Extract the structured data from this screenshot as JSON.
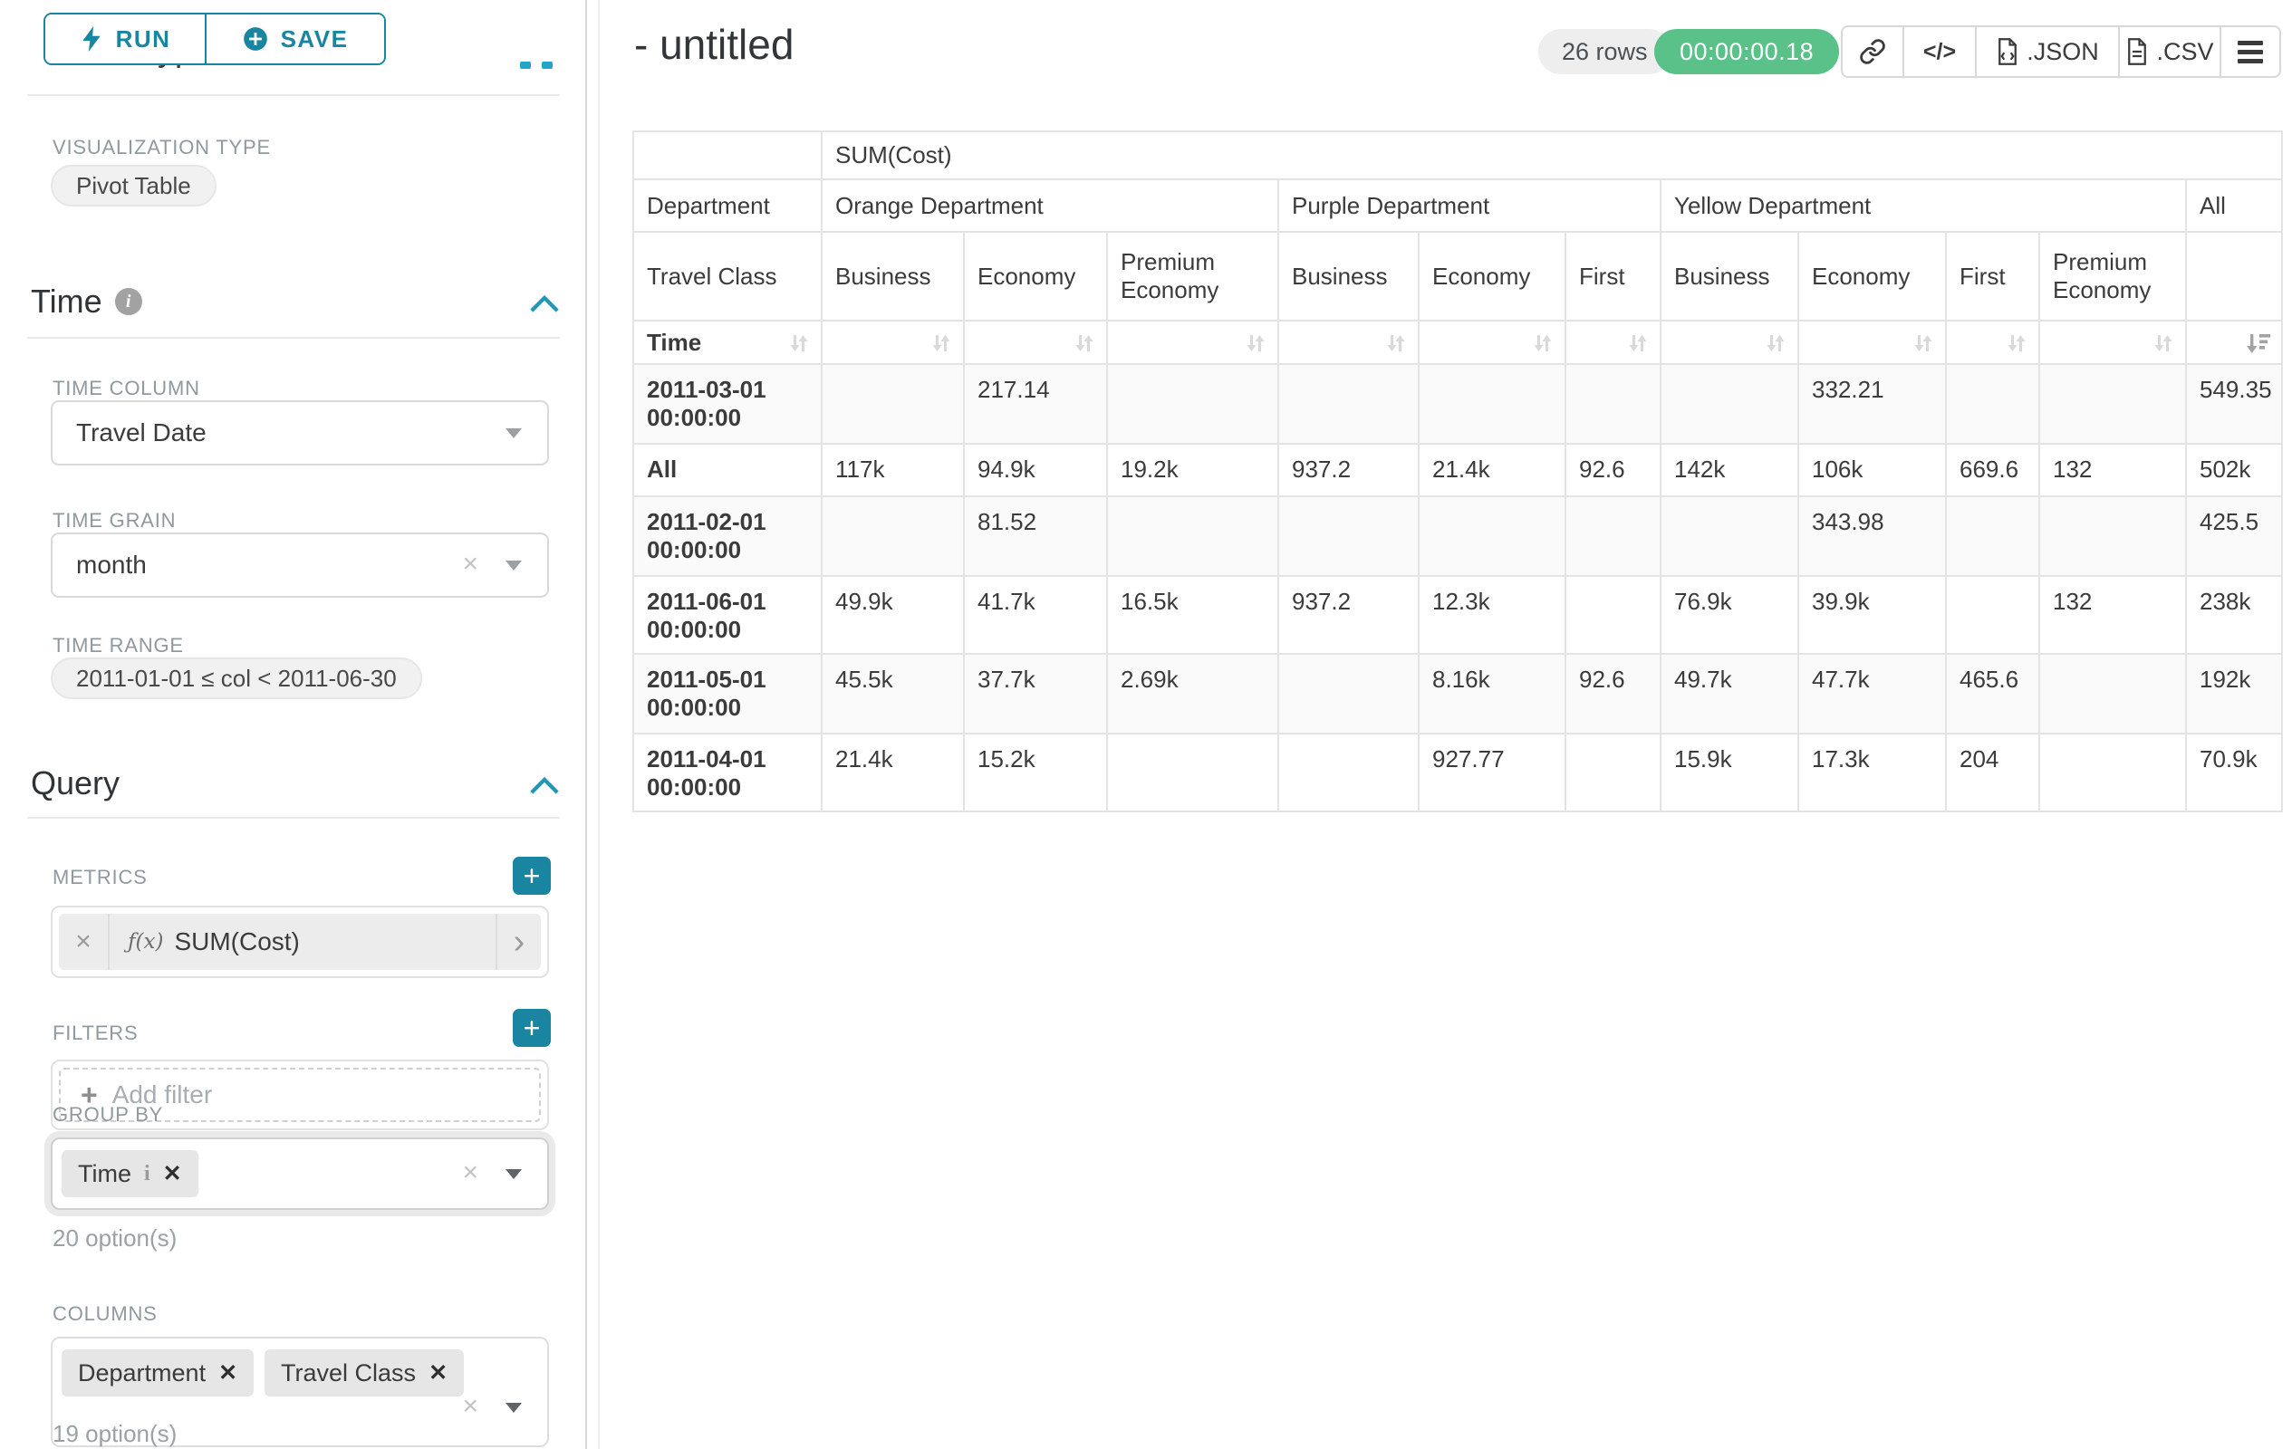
{
  "colors": {
    "teal": "#1985a0",
    "green": "#5ac189"
  },
  "toolbar": {
    "run": "RUN",
    "save": "SAVE"
  },
  "sidebar": {
    "scrolled_heading": "Chart Type",
    "viz": {
      "label": "VISUALIZATION TYPE",
      "value": "Pivot Table"
    },
    "time": {
      "title": "Time",
      "column_label": "TIME COLUMN",
      "column_value": "Travel Date",
      "grain_label": "TIME GRAIN",
      "grain_value": "month",
      "range_label": "TIME RANGE",
      "range_value": "2011-01-01 ≤ col < 2011-06-30"
    },
    "query": {
      "title": "Query",
      "metrics_label": "METRICS",
      "metric": {
        "fx": "ƒ(x)",
        "value": "SUM(Cost)"
      },
      "filters_label": "FILTERS",
      "add_filter_label": "Add filter",
      "groupby_label": "GROUP BY",
      "groupby_tags": [
        "Time"
      ],
      "groupby_options": "20 option(s)",
      "columns_label": "COLUMNS",
      "columns_tags": [
        "Department",
        "Travel Class"
      ],
      "columns_options": "19 option(s)"
    }
  },
  "header": {
    "title": "- untitled",
    "rows_badge": "26 rows",
    "timer": "00:00:00.18",
    "code_label": "</>",
    "export_json": ".JSON",
    "export_csv": ".CSV"
  },
  "pivot": {
    "metric_header": "SUM(Cost)",
    "corner": {
      "col1": "Department",
      "col2": "Travel Class",
      "row": "Time"
    },
    "groups": [
      {
        "label": "Orange Department",
        "span": 3
      },
      {
        "label": "Purple Department",
        "span": 3
      },
      {
        "label": "Yellow Department",
        "span": 4
      },
      {
        "label": "All",
        "span": 1
      }
    ],
    "subcolumns": [
      "Business",
      "Economy",
      "Premium Economy",
      "Business",
      "Economy",
      "First",
      "Business",
      "Economy",
      "First",
      "Premium Economy",
      ""
    ],
    "rows": [
      {
        "label": "2011-03-01 00:00:00",
        "values": [
          "",
          "217.14",
          "",
          "",
          "",
          "",
          "",
          "332.21",
          "",
          "",
          "549.35"
        ]
      },
      {
        "label": "All",
        "values": [
          "117k",
          "94.9k",
          "19.2k",
          "937.2",
          "21.4k",
          "92.6",
          "142k",
          "106k",
          "669.6",
          "132",
          "502k"
        ]
      },
      {
        "label": "2011-02-01 00:00:00",
        "values": [
          "",
          "81.52",
          "",
          "",
          "",
          "",
          "",
          "343.98",
          "",
          "",
          "425.5"
        ]
      },
      {
        "label": "2011-06-01 00:00:00",
        "values": [
          "49.9k",
          "41.7k",
          "16.5k",
          "937.2",
          "12.3k",
          "",
          "76.9k",
          "39.9k",
          "",
          "132",
          "238k"
        ]
      },
      {
        "label": "2011-05-01 00:00:00",
        "values": [
          "45.5k",
          "37.7k",
          "2.69k",
          "",
          "8.16k",
          "92.6",
          "49.7k",
          "47.7k",
          "465.6",
          "",
          "192k"
        ]
      },
      {
        "label": "2011-04-01 00:00:00",
        "values": [
          "21.4k",
          "15.2k",
          "",
          "",
          "927.77",
          "",
          "15.9k",
          "17.3k",
          "204",
          "",
          "70.9k"
        ]
      }
    ]
  }
}
